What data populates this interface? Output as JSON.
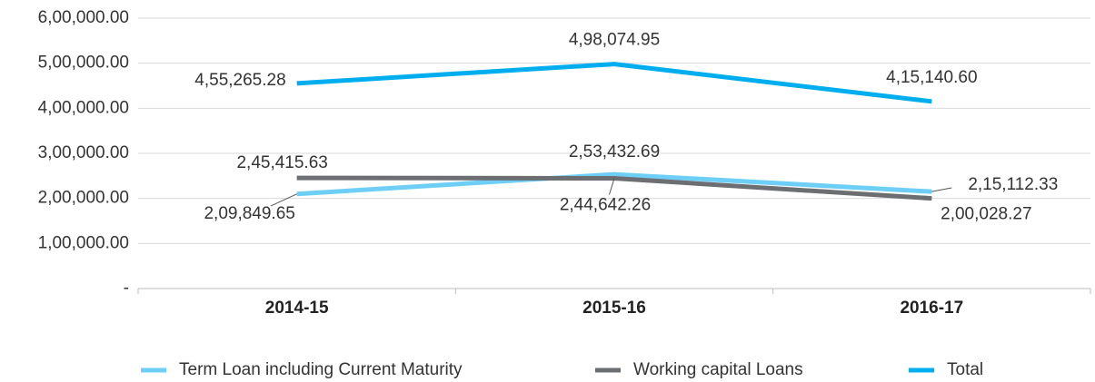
{
  "chart_data": {
    "type": "line",
    "categories": [
      "2014-15",
      "2015-16",
      "2016-17"
    ],
    "series": [
      {
        "name": "Term Loan including Current Maturity",
        "color": "#6dcff6",
        "values": [
          209849.65,
          253432.69,
          215112.33
        ],
        "value_labels": [
          "2,09,849.65",
          "2,53,432.69",
          "2,15,112.33"
        ]
      },
      {
        "name": "Working capital Loans",
        "color": "#6d6e71",
        "values": [
          245415.63,
          244642.26,
          200028.27
        ],
        "value_labels": [
          "2,45,415.63",
          "2,44,642.26",
          "2,00,028.27"
        ]
      },
      {
        "name": "Total",
        "color": "#00aeef",
        "values": [
          455265.28,
          498074.95,
          415140.6
        ],
        "value_labels": [
          "4,55,265.28",
          "4,98,074.95",
          "4,15,140.60"
        ]
      }
    ],
    "ylim": [
      0,
      600000
    ],
    "yticks": [
      {
        "value": 0,
        "label": "-"
      },
      {
        "value": 100000,
        "label": "1,00,000.00"
      },
      {
        "value": 200000,
        "label": "2,00,000.00"
      },
      {
        "value": 300000,
        "label": "3,00,000.00"
      },
      {
        "value": 400000,
        "label": "4,00,000.00"
      },
      {
        "value": 500000,
        "label": "5,00,000.00"
      },
      {
        "value": 600000,
        "label": "6,00,000.00"
      }
    ],
    "grid": true,
    "legend": "bottom"
  }
}
